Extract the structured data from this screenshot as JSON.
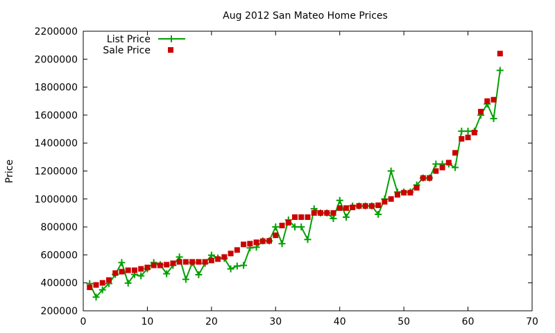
{
  "chart_data": {
    "type": "line",
    "title": "Aug 2012 San Mateo Home Prices",
    "xlabel": "",
    "ylabel": "Price",
    "xlim": [
      0,
      70
    ],
    "ylim": [
      200000,
      2200000
    ],
    "xticks": [
      0,
      10,
      20,
      30,
      40,
      50,
      60,
      70
    ],
    "yticks": [
      200000,
      400000,
      600000,
      800000,
      1000000,
      1200000,
      1400000,
      1600000,
      1800000,
      2000000,
      2200000
    ],
    "grid": false,
    "legend_position": "top-left",
    "series": [
      {
        "name": "List Price",
        "style": "line-plus",
        "color": "#00a000",
        "x": [
          1,
          2,
          3,
          4,
          5,
          6,
          7,
          8,
          9,
          10,
          11,
          12,
          13,
          14,
          15,
          16,
          17,
          18,
          19,
          20,
          21,
          22,
          23,
          24,
          25,
          26,
          27,
          28,
          29,
          30,
          31,
          32,
          33,
          34,
          35,
          36,
          37,
          38,
          39,
          40,
          41,
          42,
          43,
          44,
          45,
          46,
          47,
          48,
          49,
          50,
          51,
          52,
          53,
          54,
          55,
          56,
          57,
          58,
          59,
          60,
          61,
          62,
          63,
          64,
          65
        ],
        "y": [
          395000,
          298000,
          350000,
          395000,
          460000,
          545000,
          398000,
          460000,
          450000,
          500000,
          545000,
          530000,
          465000,
          525000,
          585000,
          425000,
          545000,
          458000,
          540000,
          598000,
          578000,
          575000,
          500000,
          520000,
          525000,
          650000,
          655000,
          700000,
          700000,
          800000,
          680000,
          850000,
          800000,
          800000,
          710000,
          930000,
          900000,
          900000,
          860000,
          990000,
          870000,
          950000,
          950000,
          950000,
          950000,
          890000,
          1000000,
          1200000,
          1050000,
          1050000,
          1050000,
          1100000,
          1150000,
          1150000,
          1250000,
          1250000,
          1250000,
          1225000,
          1485000,
          1485000,
          1485000,
          1600000,
          1680000,
          1575000,
          1920000
        ]
      },
      {
        "name": "Sale Price",
        "style": "square-markers",
        "color": "#cc0000",
        "x": [
          1,
          2,
          3,
          4,
          5,
          6,
          7,
          8,
          9,
          10,
          11,
          12,
          13,
          14,
          15,
          16,
          17,
          18,
          19,
          20,
          21,
          22,
          23,
          24,
          25,
          26,
          27,
          28,
          29,
          30,
          31,
          32,
          33,
          34,
          35,
          36,
          37,
          38,
          39,
          40,
          41,
          42,
          43,
          44,
          45,
          46,
          47,
          48,
          49,
          50,
          51,
          52,
          53,
          54,
          55,
          56,
          57,
          58,
          59,
          60,
          61,
          62,
          63,
          64,
          65
        ],
        "y": [
          368000,
          385000,
          400000,
          420000,
          470000,
          480000,
          490000,
          490000,
          500000,
          510000,
          525000,
          525000,
          530000,
          540000,
          550000,
          550000,
          550000,
          550000,
          550000,
          560000,
          570000,
          585000,
          610000,
          635000,
          675000,
          680000,
          690000,
          698000,
          700000,
          740000,
          810000,
          830000,
          870000,
          870000,
          870000,
          900000,
          900000,
          900000,
          900000,
          935000,
          935000,
          940000,
          950000,
          950000,
          950000,
          955000,
          980000,
          1000000,
          1030000,
          1045000,
          1045000,
          1080000,
          1150000,
          1150000,
          1200000,
          1225000,
          1260000,
          1330000,
          1430000,
          1440000,
          1475000,
          1625000,
          1700000,
          1710000,
          2040000
        ]
      }
    ]
  }
}
